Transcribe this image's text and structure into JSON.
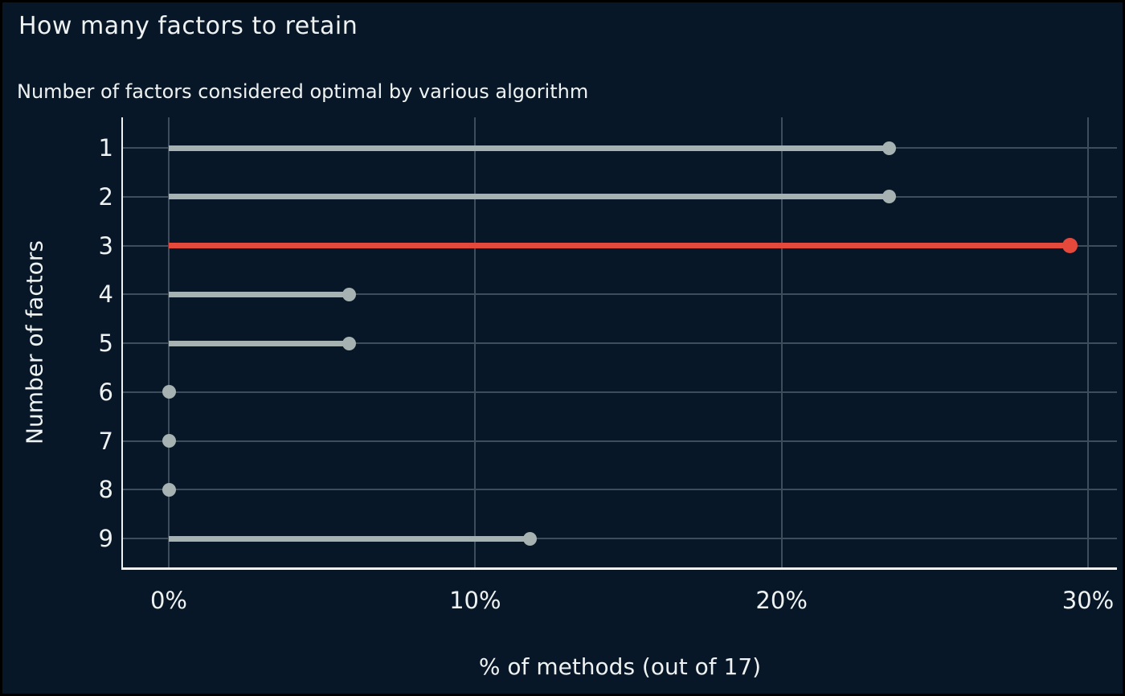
{
  "chart_data": {
    "type": "bar",
    "variant": "horizontal-lollipop",
    "title": "How many factors to retain",
    "subtitle": "Number of factors considered optimal by various algorithm",
    "xlabel": "% of methods (out of 17)",
    "ylabel": "Number of factors",
    "categories": [
      "1",
      "2",
      "3",
      "4",
      "5",
      "6",
      "7",
      "8",
      "9"
    ],
    "values": [
      23.5,
      23.5,
      29.4,
      5.9,
      5.9,
      0,
      0,
      0,
      11.8
    ],
    "highlight_category": "3",
    "highlight_index": 2,
    "xticks": [
      {
        "value": 0,
        "label": "0%"
      },
      {
        "value": 10,
        "label": "10%"
      },
      {
        "value": 20,
        "label": "20%"
      },
      {
        "value": 30,
        "label": "30%"
      }
    ],
    "xlim": [
      0,
      30.9
    ],
    "grid": true,
    "legend": "none",
    "colors": {
      "background": "#081727",
      "frame": "#000000",
      "grid": "#3d4d5c",
      "stem": "#a6b2b1",
      "highlight": "#e4493c",
      "text": "#eef2f2",
      "spine": "#eef2f2"
    }
  }
}
